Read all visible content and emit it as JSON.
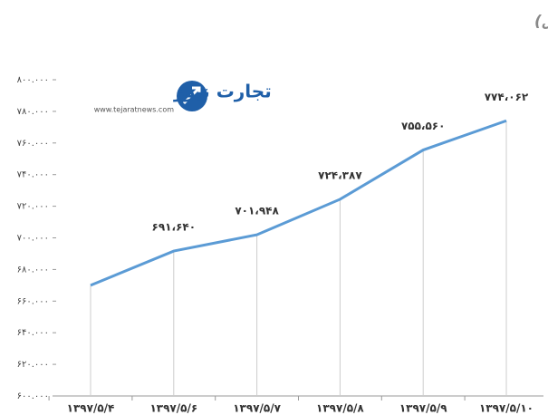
{
  "chart_data": {
    "type": "line",
    "title": "روند هفتگی ارزش بازار اول و دوم فرابورس  ایران (میلیارد ریال)",
    "logo": {
      "name": "تجارت نیوز",
      "url": "www.tejaratnews.com"
    },
    "categories": [
      "۱۳۹۷/۵/۴",
      "۱۳۹۷/۵/۶",
      "۱۳۹۷/۵/۷",
      "۱۳۹۷/۵/۸",
      "۱۳۹۷/۵/۹",
      "۱۳۹۷/۵/۱۰"
    ],
    "series": [
      {
        "color": "#5b9bd5",
        "values": [
          670000,
          691640,
          701948,
          724387,
          755560,
          774062
        ],
        "value_labels": [
          null,
          "۶۹۱،۶۴۰",
          "۷۰۱،۹۴۸",
          "۷۲۴،۳۸۷",
          "۷۵۵،۵۶۰",
          "۷۷۴،۰۶۲"
        ]
      }
    ],
    "ylim": [
      600000,
      800000
    ],
    "yticks": [
      {
        "value": 600000,
        "label": "۶۰۰.۰۰۰"
      },
      {
        "value": 620000,
        "label": "۶۲۰.۰۰۰"
      },
      {
        "value": 640000,
        "label": "۶۴۰.۰۰۰"
      },
      {
        "value": 660000,
        "label": "۶۶۰.۰۰۰"
      },
      {
        "value": 680000,
        "label": "۶۸۰.۰۰۰"
      },
      {
        "value": 700000,
        "label": "۷۰۰.۰۰۰"
      },
      {
        "value": 720000,
        "label": "۷۲۰.۰۰۰"
      },
      {
        "value": 740000,
        "label": "۷۴۰.۰۰۰"
      },
      {
        "value": 760000,
        "label": "۷۶۰.۰۰۰"
      },
      {
        "value": 780000,
        "label": "۷۸۰.۰۰۰"
      },
      {
        "value": 800000,
        "label": "۸۰۰.۰۰۰"
      }
    ],
    "drop_lines": true
  }
}
